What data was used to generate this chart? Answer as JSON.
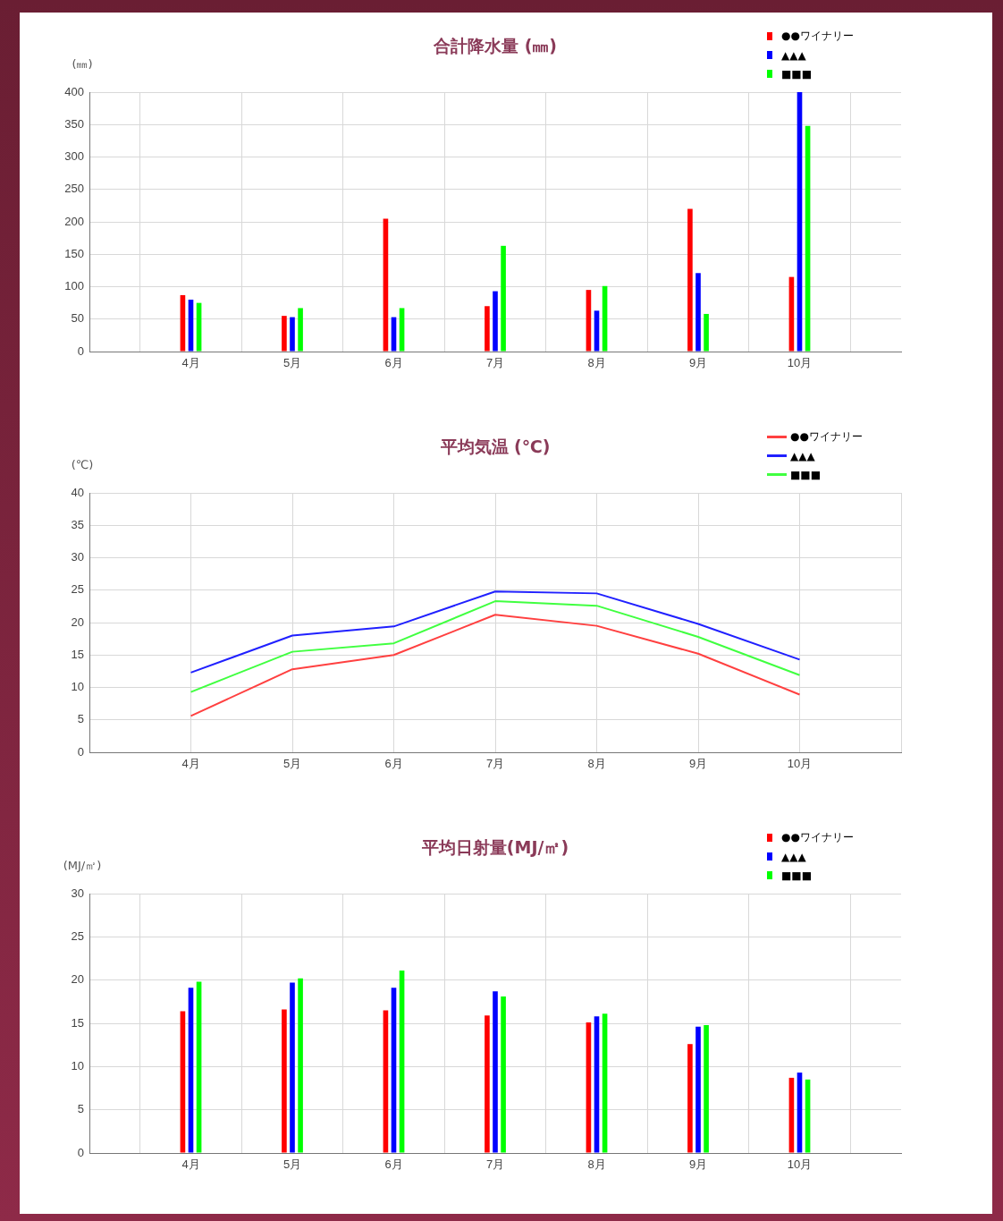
{
  "chart_data": [
    {
      "type": "bar",
      "title": "合計降水量 (㎜)",
      "ylabel": "(㎜)",
      "categories": [
        null,
        "4月",
        "5月",
        "6月",
        "7月",
        "8月",
        "9月",
        "10月",
        null
      ],
      "ylim": [
        0,
        400
      ],
      "yticks": [
        0,
        50,
        100,
        150,
        200,
        250,
        300,
        350,
        400
      ],
      "grid": true,
      "legend": "top right",
      "series": [
        {
          "name": "●●ワイナリー",
          "color": "#ff0000",
          "values": [
            null,
            87,
            55,
            205,
            70,
            95,
            220,
            115,
            null
          ]
        },
        {
          "name": "▲▲▲",
          "color": "#0000ff",
          "values": [
            null,
            80,
            53,
            53,
            93,
            63,
            121,
            400,
            null
          ]
        },
        {
          "name": "■■■",
          "color": "#00ff00",
          "values": [
            null,
            75,
            67,
            67,
            163,
            101,
            58,
            348,
            null
          ]
        }
      ]
    },
    {
      "type": "line",
      "title": "平均気温 (℃)",
      "ylabel": "(℃)",
      "categories": [
        null,
        "4月",
        "5月",
        "6月",
        "7月",
        "8月",
        "9月",
        "10月",
        null
      ],
      "ylim": [
        0,
        40
      ],
      "yticks": [
        0,
        5,
        10,
        15,
        20,
        25,
        30,
        35,
        40
      ],
      "grid": true,
      "legend": "top right",
      "marker": "none",
      "line_style": "solid",
      "series": [
        {
          "name": "●●ワイナリー",
          "color": "#ff4040",
          "values": [
            null,
            5.6,
            12.8,
            15,
            21.2,
            19.5,
            15.2,
            8.9,
            null
          ]
        },
        {
          "name": "▲▲▲",
          "color": "#2020ff",
          "values": [
            null,
            12.3,
            18,
            19.4,
            24.8,
            24.5,
            19.8,
            14.3,
            null
          ]
        },
        {
          "name": "■■■",
          "color": "#40ff40",
          "values": [
            null,
            9.3,
            15.5,
            16.8,
            23.3,
            22.6,
            17.8,
            11.9,
            null
          ]
        }
      ]
    },
    {
      "type": "bar",
      "title": "平均日射量(MJ/㎡)",
      "ylabel": "(MJ/㎡)",
      "categories": [
        null,
        "4月",
        "5月",
        "6月",
        "7月",
        "8月",
        "9月",
        "10月",
        null
      ],
      "ylim": [
        0,
        30
      ],
      "yticks": [
        0,
        5,
        10,
        15,
        20,
        25,
        30
      ],
      "grid": true,
      "legend": "top right",
      "series": [
        {
          "name": "●●ワイナリー",
          "color": "#ff0000",
          "values": [
            null,
            16.4,
            16.6,
            16.5,
            15.9,
            15.1,
            12.6,
            8.7,
            null
          ]
        },
        {
          "name": "▲▲▲",
          "color": "#0000ff",
          "values": [
            null,
            19.1,
            19.7,
            19.1,
            18.7,
            15.8,
            14.6,
            9.3,
            null
          ]
        },
        {
          "name": "■■■",
          "color": "#00ff00",
          "values": [
            null,
            19.8,
            20.2,
            21.1,
            18.1,
            16.1,
            14.8,
            8.5,
            null
          ]
        }
      ]
    }
  ]
}
